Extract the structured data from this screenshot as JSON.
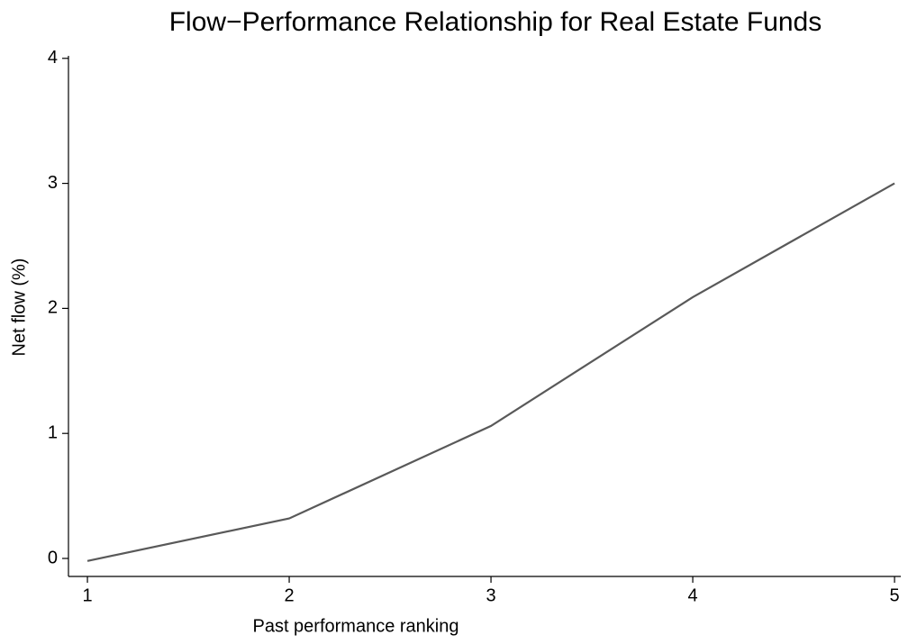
{
  "chart_data": {
    "type": "line",
    "title": "Flow−Performance Relationship for Real Estate Funds",
    "x_label": "Past performance ranking",
    "y_label": "Net flow (%)",
    "x": [
      1,
      2,
      3,
      4,
      5
    ],
    "values": [
      -0.02,
      0.32,
      1.06,
      2.09,
      3.0
    ],
    "color": "#595959",
    "xlim": [
      0.906,
      5.031
    ],
    "xticks": [
      1,
      2,
      3,
      4,
      5
    ],
    "ylim": [
      -0.144,
      4.02
    ],
    "yticks": [
      0,
      1,
      2,
      3,
      4
    ],
    "grid": false
  }
}
